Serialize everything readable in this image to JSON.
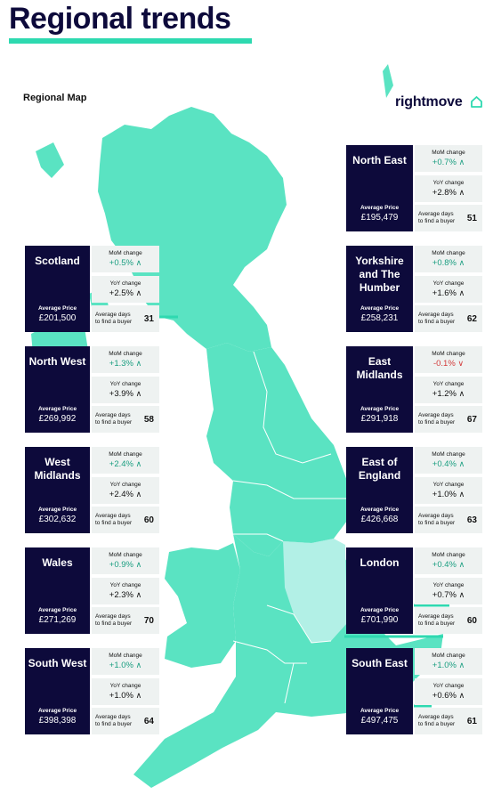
{
  "title": "Regional trends",
  "map_label": "Regional Map",
  "brand": "rightmove",
  "colors": {
    "map_fill": "#5ae3c2",
    "london_fill": "#b2f0e6",
    "navy": "#0d0a3b",
    "accent": "#2ed9b0",
    "positive": "#1a9e80",
    "negative": "#d33b3b"
  },
  "labels": {
    "mom": "MoM change",
    "yoy": "YoY change",
    "avg_price": "Average Price",
    "days_line1": "Average days",
    "days_line2": "to find a buyer"
  },
  "regions": [
    {
      "name": "Scotland",
      "price": "£201,500",
      "mom": "+0.5%",
      "yoy": "+2.5%",
      "days": "31",
      "mom_dir": "up",
      "yoy_dir": "up"
    },
    {
      "name": "North West",
      "price": "£269,992",
      "mom": "+1.3%",
      "yoy": "+3.9%",
      "days": "58",
      "mom_dir": "up",
      "yoy_dir": "up"
    },
    {
      "name": "West Midlands",
      "price": "£302,632",
      "mom": "+2.4%",
      "yoy": "+2.4%",
      "days": "60",
      "mom_dir": "up",
      "yoy_dir": "up"
    },
    {
      "name": "Wales",
      "price": "£271,269",
      "mom": "+0.9%",
      "yoy": "+2.3%",
      "days": "70",
      "mom_dir": "up",
      "yoy_dir": "up"
    },
    {
      "name": "South West",
      "price": "£398,398",
      "mom": "+1.0%",
      "yoy": "+1.0%",
      "days": "64",
      "mom_dir": "up",
      "yoy_dir": "up"
    },
    {
      "name": "North East",
      "price": "£195,479",
      "mom": "+0.7%",
      "yoy": "+2.8%",
      "days": "51",
      "mom_dir": "up",
      "yoy_dir": "up"
    },
    {
      "name": "Yorkshire and The Humber",
      "price": "£258,231",
      "mom": "+0.8%",
      "yoy": "+1.6%",
      "days": "62",
      "mom_dir": "up",
      "yoy_dir": "up"
    },
    {
      "name": "East Midlands",
      "price": "£291,918",
      "mom": "-0.1%",
      "yoy": "+1.2%",
      "days": "67",
      "mom_dir": "down",
      "yoy_dir": "up"
    },
    {
      "name": "East of England",
      "price": "£426,668",
      "mom": "+0.4%",
      "yoy": "+1.0%",
      "days": "63",
      "mom_dir": "up",
      "yoy_dir": "up"
    },
    {
      "name": "London",
      "price": "£701,990",
      "mom": "+0.4%",
      "yoy": "+0.7%",
      "days": "60",
      "mom_dir": "up",
      "yoy_dir": "up"
    },
    {
      "name": "South East",
      "price": "£497,475",
      "mom": "+1.0%",
      "yoy": "+0.6%",
      "days": "61",
      "mom_dir": "up",
      "yoy_dir": "up"
    }
  ]
}
